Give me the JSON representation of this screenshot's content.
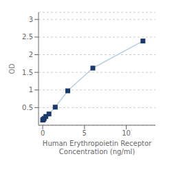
{
  "chart_data": {
    "type": "line",
    "xlabel": "Human Erythropoietin Receptor\nConcentration (ng/ml)",
    "ylabel": "OD",
    "x": [
      0,
      0.047,
      0.094,
      0.188,
      0.375,
      0.75,
      1.5,
      3,
      6,
      12
    ],
    "values": [
      0.146,
      0.158,
      0.168,
      0.194,
      0.248,
      0.319,
      0.513,
      0.975,
      1.62,
      2.388
    ],
    "color": "#b8d0e0",
    "colors": [
      "#1a3a6b",
      "#1a3a6b",
      "#1a3a6b",
      "#1a3a6b",
      "#1a3a6b",
      "#1a3a6b",
      "#1a3a6b",
      "#1a3a6b",
      "#1a3a6b",
      "#1a3a6b"
    ],
    "marker": "square",
    "line_style": "solid",
    "xlim": [
      -0.5,
      13.5
    ],
    "ylim": [
      0,
      3.2
    ],
    "xticks": [
      0,
      5,
      10
    ],
    "yticks": [
      0.5,
      1,
      1.5,
      2,
      2.5,
      3
    ],
    "grid": true
  }
}
